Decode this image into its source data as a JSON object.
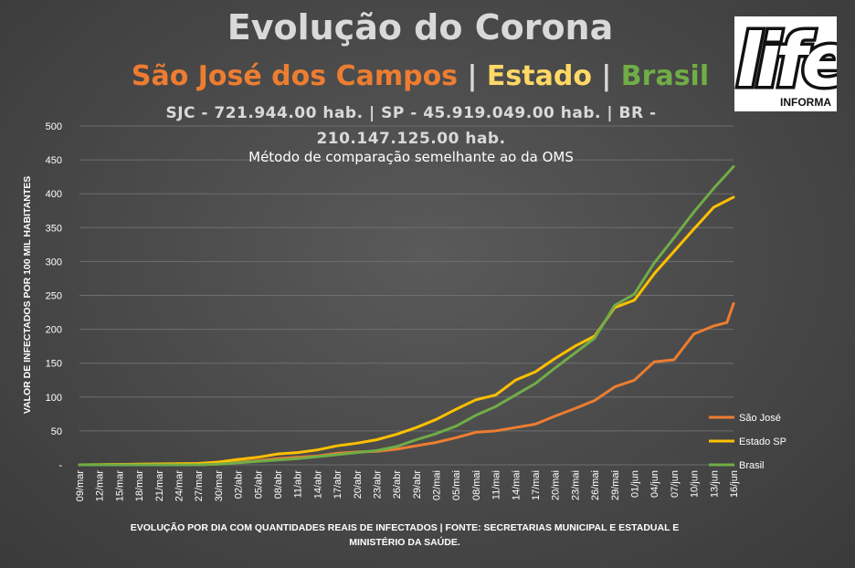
{
  "chart_data": {
    "type": "line",
    "title": "Evolução do Corona",
    "subtitle": {
      "sjc": "São José dos Campos",
      "sep1": " | ",
      "estado": "Estado",
      "sep2": " | ",
      "brasil": "Brasil"
    },
    "population_text": "SJC - 721.944.00 hab. | SP - 45.919.049.00 hab. | BR - 210.147.125.00 hab.",
    "method_note": "Método de comparação semelhante ao da OMS",
    "ylabel": "VALOR DE INFECTADOS POR 100 MIL HABITANTES",
    "xlabel": "EVOLUÇÃO POR DIA COM QUANTIDADES REAIS DE INFECTADOS | FONTE: SECRETARIAS MUNICIPAL E ESTADUAL E MINISTÉRIO DA SAÚDE.",
    "ylim": [
      0,
      500
    ],
    "y_ticks": [
      "-",
      "50",
      "100",
      "150",
      "200",
      "250",
      "300",
      "350",
      "400",
      "450",
      "500"
    ],
    "x_tick_labels": [
      "09/mar",
      "12/mar",
      "15/mar",
      "18/mar",
      "21/mar",
      "24/mar",
      "27/mar",
      "30/mar",
      "02/abr",
      "05/abr",
      "08/abr",
      "11/abr",
      "14/abr",
      "17/abr",
      "20/abr",
      "23/abr",
      "26/abr",
      "29/abr",
      "02/mai",
      "05/mai",
      "08/mai",
      "11/mai",
      "14/mai",
      "17/mai",
      "20/mai",
      "23/mai",
      "26/mai",
      "29/mai",
      "01/jun",
      "04/jun",
      "07/jun",
      "10/jun",
      "13/jun",
      "16/jun"
    ],
    "x_start": "09/mar",
    "x_end": "16/jun",
    "legend_position": "bottom-right",
    "grid": "horizontal",
    "series": [
      {
        "name": "São José",
        "color": "#ed7d31",
        "x": [
          "09/mar",
          "18/mar",
          "27/mar",
          "30/mar",
          "02/abr",
          "05/abr",
          "08/abr",
          "11/abr",
          "14/abr",
          "17/abr",
          "20/abr",
          "23/abr",
          "26/abr",
          "29/abr",
          "02/mai",
          "05/mai",
          "08/mai",
          "11/mai",
          "14/mai",
          "17/mai",
          "20/mai",
          "23/mai",
          "26/mai",
          "29/mai",
          "01/jun",
          "04/jun",
          "07/jun",
          "10/jun",
          "13/jun",
          "15/jun",
          "16/jun"
        ],
        "values": [
          0,
          0,
          0,
          1,
          4,
          6,
          9,
          11,
          13,
          17,
          19,
          20,
          23,
          28,
          33,
          40,
          48,
          50,
          55,
          60,
          72,
          83,
          95,
          115,
          125,
          152,
          155,
          193,
          205,
          210,
          238
        ]
      },
      {
        "name": "Estado SP",
        "color": "#ffc000",
        "x": [
          "09/mar",
          "18/mar",
          "27/mar",
          "30/mar",
          "02/abr",
          "05/abr",
          "08/abr",
          "11/abr",
          "14/abr",
          "17/abr",
          "20/abr",
          "23/abr",
          "26/abr",
          "29/abr",
          "02/mai",
          "05/mai",
          "08/mai",
          "11/mai",
          "14/mai",
          "17/mai",
          "20/mai",
          "23/mai",
          "26/mai",
          "29/mai",
          "01/jun",
          "04/jun",
          "07/jun",
          "10/jun",
          "13/jun",
          "16/jun"
        ],
        "values": [
          0,
          1,
          2,
          4,
          8,
          11,
          16,
          18,
          22,
          28,
          32,
          37,
          45,
          55,
          67,
          82,
          96,
          103,
          125,
          137,
          157,
          175,
          190,
          232,
          243,
          282,
          315,
          348,
          380,
          395
        ]
      },
      {
        "name": "Brasil",
        "color": "#70ad47",
        "x": [
          "09/mar",
          "18/mar",
          "27/mar",
          "30/mar",
          "02/abr",
          "05/abr",
          "08/abr",
          "11/abr",
          "14/abr",
          "17/abr",
          "20/abr",
          "23/abr",
          "26/abr",
          "29/abr",
          "02/mai",
          "05/mai",
          "08/mai",
          "11/mai",
          "14/mai",
          "17/mai",
          "20/mai",
          "23/mai",
          "26/mai",
          "29/mai",
          "01/jun",
          "04/jun",
          "07/jun",
          "10/jun",
          "13/jun",
          "16/jun"
        ],
        "values": [
          0,
          0,
          0,
          1,
          3,
          5,
          7,
          9,
          12,
          15,
          18,
          21,
          27,
          37,
          46,
          57,
          73,
          86,
          103,
          120,
          143,
          165,
          187,
          235,
          252,
          298,
          335,
          373,
          408,
          440
        ]
      }
    ]
  },
  "logo": {
    "main": "life",
    "sub": "INFORMA"
  }
}
